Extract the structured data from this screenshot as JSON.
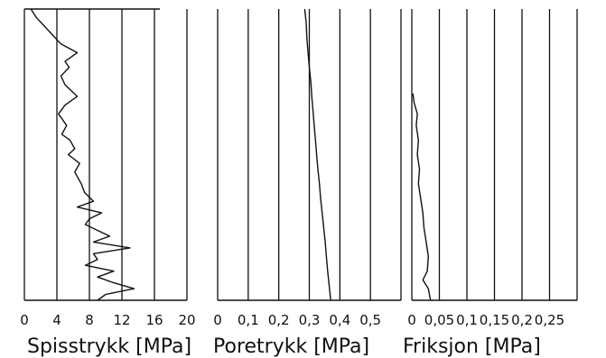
{
  "chart_data": [
    {
      "type": "line",
      "orientation": "vertical-profile",
      "title": "",
      "xlabel": "Spisstrykk [MPa]",
      "ylabel": "",
      "xlim": [
        0,
        20
      ],
      "x_ticks": [
        "0",
        "4",
        "8",
        "12",
        "16",
        "20"
      ],
      "grid": true,
      "series": [
        {
          "depth": [
            0,
            0.03,
            0.06,
            0.09,
            0.12,
            0.15,
            0.18,
            0.2,
            0.23,
            0.26,
            0.3,
            0.33,
            0.36,
            0.4,
            0.43,
            0.45,
            0.48,
            0.5,
            0.53,
            0.56,
            0.6,
            0.63,
            0.66,
            0.68,
            0.7,
            0.72,
            0.74,
            0.76,
            0.78,
            0.8,
            0.82,
            0.84,
            0.86,
            0.88,
            0.9,
            0.92,
            0.94,
            0.96,
            0.98,
            1.0
          ],
          "values": [
            0.8,
            1.5,
            2.5,
            3.5,
            4.5,
            6.5,
            5.0,
            5.5,
            4.5,
            5.0,
            6.5,
            5.0,
            4.2,
            5.2,
            4.6,
            5.6,
            6.2,
            5.4,
            6.8,
            6.2,
            7.0,
            7.4,
            8.5,
            6.5,
            9.5,
            8.0,
            7.5,
            9.0,
            10.5,
            8.5,
            13.0,
            8.5,
            9.0,
            7.5,
            11.0,
            9.0,
            11.0,
            13.5,
            10.0,
            9.0
          ]
        }
      ]
    },
    {
      "type": "line",
      "orientation": "vertical-profile",
      "title": "",
      "xlabel": "Poretrykk [MPa]",
      "ylabel": "",
      "xlim": [
        0,
        0.6
      ],
      "x_ticks": [
        "0",
        "0,1",
        "0,2",
        "0,3",
        "0,4",
        "0,5"
      ],
      "grid": true,
      "series": [
        {
          "depth": [
            0,
            0.05,
            0.1,
            0.15,
            0.2,
            0.25,
            0.3,
            0.35,
            0.4,
            0.45,
            0.5,
            0.55,
            0.6,
            0.65,
            0.7,
            0.75,
            0.8,
            0.85,
            0.9,
            0.95,
            1.0
          ],
          "values": [
            0.285,
            0.29,
            0.292,
            0.296,
            0.3,
            0.305,
            0.308,
            0.312,
            0.316,
            0.32,
            0.324,
            0.328,
            0.333,
            0.337,
            0.342,
            0.347,
            0.352,
            0.356,
            0.36,
            0.365,
            0.37
          ]
        }
      ]
    },
    {
      "type": "line",
      "orientation": "vertical-profile",
      "title": "",
      "xlabel": "Friksjon [MPa]",
      "ylabel": "",
      "xlim": [
        0,
        0.3
      ],
      "x_ticks": [
        "0",
        "0,05",
        "0,1",
        "0,15",
        "0,2",
        "0,25"
      ],
      "grid": true,
      "series": [
        {
          "depth": [
            0.29,
            0.32,
            0.36,
            0.4,
            0.45,
            0.5,
            0.55,
            0.6,
            0.65,
            0.7,
            0.75,
            0.8,
            0.85,
            0.9,
            0.93,
            0.96,
            1.0
          ],
          "values": [
            0.002,
            0.004,
            0.01,
            0.008,
            0.012,
            0.01,
            0.014,
            0.012,
            0.016,
            0.02,
            0.022,
            0.026,
            0.03,
            0.028,
            0.02,
            0.03,
            0.034
          ]
        }
      ]
    }
  ]
}
